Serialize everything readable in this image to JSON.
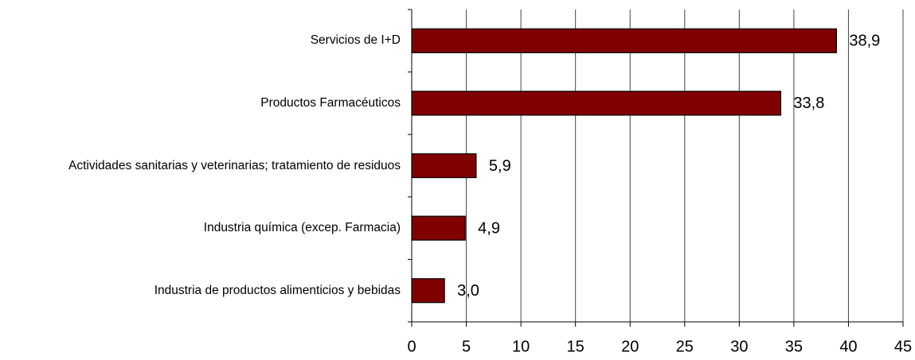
{
  "chart_data": {
    "type": "bar",
    "orientation": "horizontal",
    "categories": [
      "Servicios de I+D",
      "Productos Farmacéuticos",
      "Actividades sanitarias y veterinarias; tratamiento de residuos",
      "Industria química (excep. Farmacia)",
      "Industria de productos alimenticios y bebidas"
    ],
    "values": [
      38.9,
      33.8,
      5.9,
      4.9,
      3.0
    ],
    "value_labels": [
      "38,9",
      "33,8",
      "5,9",
      "4,9",
      "3,0"
    ],
    "color": "#800000",
    "xlim": [
      0,
      45
    ],
    "xticks": [
      0,
      5,
      10,
      15,
      20,
      25,
      30,
      35,
      40,
      45
    ],
    "grid": true
  }
}
